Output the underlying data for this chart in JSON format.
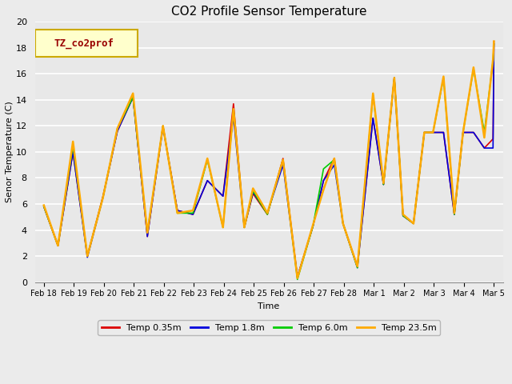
{
  "title": "CO2 Profile Sensor Temperature",
  "ylabel": "Senor Temperature (C)",
  "xlabel": "Time",
  "ylim": [
    0,
    20
  ],
  "legend_label": "TZ_co2prof",
  "fig_bg_color": "#ebebeb",
  "plot_bg_color": "#e8e8e8",
  "series_colors": {
    "Temp 0.35m": "#dd0000",
    "Temp 1.8m": "#0000dd",
    "Temp 6.0m": "#00cc00",
    "Temp 23.5m": "#ffaa00"
  },
  "x_labels": [
    "Feb 18",
    "Feb 19",
    "Feb 20",
    "Feb 21",
    "Feb 22",
    "Feb 23",
    "Feb 24",
    "Feb 25",
    "Feb 26",
    "Feb 27",
    "Feb 28",
    "Mar 1",
    "Mar 2",
    "Mar 3",
    "Mar 4",
    "Mar 5"
  ],
  "series_order_draw": [
    "Temp 0.35m",
    "Temp 1.8m",
    "Temp 6.0m",
    "Temp 23.5m"
  ],
  "series_x": [
    0.0,
    0.47,
    0.97,
    1.45,
    1.97,
    2.45,
    2.97,
    3.45,
    3.97,
    4.45,
    4.97,
    5.45,
    5.97,
    6.32,
    6.68,
    6.97,
    7.45,
    7.97,
    8.45,
    8.97,
    9.32,
    9.68,
    9.97,
    10.45,
    10.97,
    11.32,
    11.68,
    11.97,
    12.32,
    12.68,
    12.97,
    13.32,
    13.68,
    13.97,
    14.32,
    14.68,
    14.97,
    15.0
  ],
  "y_23_5m": [
    5.9,
    2.8,
    10.8,
    2.0,
    6.5,
    11.8,
    14.5,
    3.8,
    12.0,
    5.3,
    5.5,
    9.5,
    4.2,
    13.3,
    4.2,
    7.2,
    5.3,
    9.4,
    0.3,
    4.4,
    7.1,
    9.5,
    4.5,
    1.2,
    14.5,
    7.6,
    15.7,
    5.2,
    4.5,
    11.5,
    11.5,
    15.8,
    5.3,
    11.5,
    16.5,
    11.1,
    17.1,
    18.5
  ],
  "y_6_0m": [
    5.8,
    2.8,
    10.5,
    2.0,
    6.5,
    11.8,
    14.2,
    3.8,
    12.0,
    5.3,
    5.3,
    9.4,
    4.2,
    13.3,
    4.2,
    7.0,
    5.2,
    9.4,
    0.2,
    4.3,
    8.7,
    9.4,
    4.5,
    1.1,
    14.4,
    7.5,
    15.7,
    5.1,
    4.5,
    11.5,
    11.5,
    15.7,
    5.2,
    11.5,
    16.4,
    11.5,
    17.0,
    18.3
  ],
  "y_1_8m": [
    5.8,
    2.8,
    10.0,
    1.9,
    6.5,
    11.6,
    14.2,
    3.5,
    11.9,
    5.5,
    5.2,
    7.8,
    6.6,
    12.7,
    4.2,
    6.9,
    5.3,
    9.0,
    0.4,
    4.3,
    7.8,
    9.0,
    4.5,
    1.1,
    12.6,
    7.5,
    15.7,
    5.1,
    4.5,
    11.5,
    11.5,
    11.5,
    5.2,
    11.5,
    11.5,
    10.3,
    10.3,
    18.3
  ],
  "y_0_35m": [
    5.8,
    2.8,
    10.0,
    2.0,
    6.6,
    11.6,
    14.2,
    3.5,
    12.0,
    5.5,
    5.2,
    7.8,
    6.6,
    13.7,
    4.2,
    6.8,
    5.2,
    9.5,
    0.4,
    4.3,
    7.8,
    9.5,
    4.5,
    1.2,
    12.6,
    7.5,
    15.7,
    5.1,
    4.5,
    11.5,
    11.5,
    11.5,
    5.2,
    11.5,
    11.5,
    10.3,
    11.0,
    18.5
  ]
}
